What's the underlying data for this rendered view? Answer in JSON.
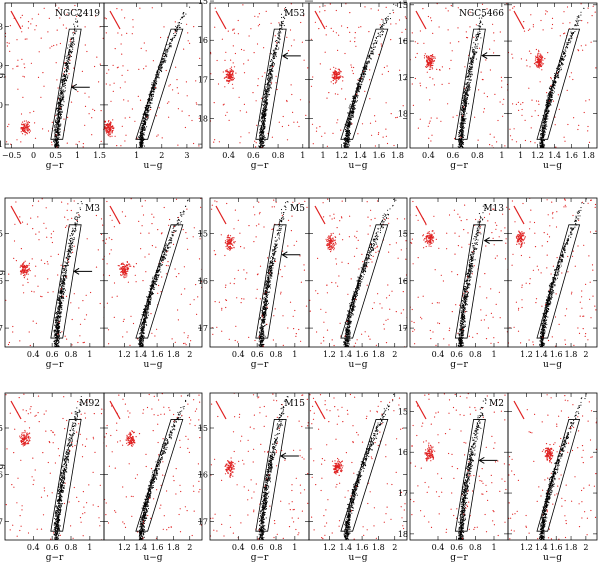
{
  "figure": {
    "y_axis_label": "g",
    "x_axis_labels": [
      "g−r",
      "u−g"
    ]
  },
  "colors": {
    "field_stars": "#e02020",
    "cluster_stars": "#000000",
    "arrows_and_boxes": "#000000"
  },
  "chart_data": [
    {
      "type": "scatter",
      "title": "NGC2419",
      "ylim": [
        21.1,
        17.4
      ],
      "yticks": [
        18,
        19,
        20,
        21
      ],
      "panels": [
        {
          "xlabel": "g−r",
          "xlim": [
            -0.65,
            1.6
          ],
          "xticks": [
            -0.5,
            0,
            0.5,
            1,
            1.5
          ],
          "xtick_labels": [
            "−0.5",
            "0",
            "0.5",
            "1",
            "1.5"
          ]
        },
        {
          "xlabel": "u−g",
          "xlim": [
            -0.3,
            3.6
          ],
          "xticks": [
            1,
            2,
            3
          ],
          "xtick_labels": [
            "1",
            "2",
            "3"
          ]
        }
      ],
      "arrow_g": 19.55,
      "red_blob": {
        "x": -0.1,
        "y": 20.6
      }
    },
    {
      "type": "scatter",
      "title": "M53",
      "ylim": [
        18.75,
        15.05
      ],
      "yticks": [
        15,
        16,
        17,
        18
      ],
      "panels": [
        {
          "xlabel": "g−r",
          "xlim": [
            0.25,
            1.05
          ],
          "xticks": [
            0.4,
            0.6,
            0.8,
            1
          ],
          "xtick_labels": [
            "0.4",
            "0.6",
            "0.8",
            "1"
          ]
        },
        {
          "xlabel": "u−g",
          "xlim": [
            0.85,
            1.9
          ],
          "xticks": [
            1,
            1.2,
            1.4,
            1.6,
            1.8
          ],
          "xtick_labels": [
            "1",
            "1.2",
            "1.4",
            "1.6",
            "1.8"
          ]
        }
      ],
      "arrow_g": 16.4,
      "red_blob": {
        "x": 1.15,
        "y": 16.9
      }
    },
    {
      "type": "scatter",
      "title": "NGC5466",
      "ylim": [
        18.95,
        14.95
      ],
      "yticks": [
        15,
        16,
        17,
        18
      ],
      "panels": [
        {
          "xlabel": "g−r",
          "xlim": [
            0.25,
            1.05
          ],
          "xticks": [
            0.4,
            0.6,
            0.8,
            1
          ],
          "xtick_labels": [
            "0.4",
            "0.6",
            "0.8",
            "1"
          ]
        },
        {
          "xlabel": "u−g",
          "xlim": [
            0.85,
            1.9
          ],
          "xticks": [
            1,
            1.2,
            1.4,
            1.6,
            1.8
          ],
          "xtick_labels": [
            "1",
            "1.2",
            "1.4",
            "1.6",
            "1.8"
          ]
        }
      ],
      "arrow_g": 16.4,
      "red_blob": {
        "x": 1.22,
        "y": 16.55
      }
    },
    {
      "type": "scatter",
      "title": "M3",
      "ylim": [
        17.4,
        14.25
      ],
      "yticks": [
        15,
        16,
        17
      ],
      "panels": [
        {
          "xlabel": "g−r",
          "xlim": [
            0.1,
            1.15
          ],
          "xticks": [
            0.4,
            0.6,
            0.8,
            1
          ],
          "xtick_labels": [
            "0.4",
            "0.6",
            "0.8",
            "1"
          ]
        },
        {
          "xlabel": "u−g",
          "xlim": [
            0.95,
            2.15
          ],
          "xticks": [
            1.2,
            1.4,
            1.6,
            1.8,
            2
          ],
          "xtick_labels": [
            "1.2",
            "1.4",
            "1.6",
            "1.8",
            "2"
          ]
        }
      ],
      "arrow_g": 15.8,
      "red_blob": {
        "x": 1.2,
        "y": 15.75
      }
    },
    {
      "type": "scatter",
      "title": "M5",
      "ylim": [
        17.4,
        14.25
      ],
      "yticks": [
        15,
        16,
        17
      ],
      "panels": [
        {
          "xlabel": "g−r",
          "xlim": [
            0.1,
            1.15
          ],
          "xticks": [
            0.4,
            0.6,
            0.8,
            1
          ],
          "xtick_labels": [
            "0.4",
            "0.6",
            "0.8",
            "1"
          ]
        },
        {
          "xlabel": "u−g",
          "xlim": [
            0.95,
            2.15
          ],
          "xticks": [
            1.2,
            1.4,
            1.6,
            1.8,
            2
          ],
          "xtick_labels": [
            "1.2",
            "1.4",
            "1.6",
            "1.8",
            "2"
          ]
        }
      ],
      "arrow_g": 15.45,
      "red_blob": {
        "x": 1.22,
        "y": 15.2
      }
    },
    {
      "type": "scatter",
      "title": "M13",
      "ylim": [
        17.4,
        14.25
      ],
      "yticks": [
        15,
        16,
        17
      ],
      "panels": [
        {
          "xlabel": "g−r",
          "xlim": [
            0.1,
            1.15
          ],
          "xticks": [
            0.4,
            0.6,
            0.8,
            1
          ],
          "xtick_labels": [
            "0.4",
            "0.6",
            "0.8",
            "1"
          ]
        },
        {
          "xlabel": "u−g",
          "xlim": [
            0.95,
            2.15
          ],
          "xticks": [
            1.2,
            1.4,
            1.6,
            1.8,
            2
          ],
          "xtick_labels": [
            "1.2",
            "1.4",
            "1.6",
            "1.8",
            "2"
          ]
        }
      ],
      "arrow_g": 15.15,
      "red_blob": {
        "x": 1.12,
        "y": 15.1
      }
    },
    {
      "type": "scatter",
      "title": "M92",
      "ylim": [
        17.4,
        14.25
      ],
      "yticks": [
        15,
        16,
        17
      ],
      "panels": [
        {
          "xlabel": "g−r",
          "xlim": [
            0.1,
            1.15
          ],
          "xticks": [
            0.4,
            0.6,
            0.8,
            1
          ],
          "xtick_labels": [
            "0.4",
            "0.6",
            "0.8",
            "1"
          ]
        },
        {
          "xlabel": "u−g",
          "xlim": [
            0.95,
            2.15
          ],
          "xticks": [
            1.2,
            1.4,
            1.6,
            1.8,
            2
          ],
          "xtick_labels": [
            "1.2",
            "1.4",
            "1.6",
            "1.8",
            "2"
          ]
        }
      ],
      "arrow_g": null,
      "red_blob": {
        "x": 1.28,
        "y": 15.25
      }
    },
    {
      "type": "scatter",
      "title": "M15",
      "ylim": [
        17.4,
        14.25
      ],
      "yticks": [
        15,
        16,
        17
      ],
      "panels": [
        {
          "xlabel": "g−r",
          "xlim": [
            0.1,
            1.15
          ],
          "xticks": [
            0.4,
            0.6,
            0.8,
            1
          ],
          "xtick_labels": [
            "0.4",
            "0.6",
            "0.8",
            "1"
          ]
        },
        {
          "xlabel": "u−g",
          "xlim": [
            0.95,
            2.15
          ],
          "xticks": [
            1.2,
            1.4,
            1.6,
            1.8,
            2
          ],
          "xtick_labels": [
            "1.2",
            "1.4",
            "1.6",
            "1.8",
            "2"
          ]
        }
      ],
      "arrow_g": 15.6,
      "red_blob": {
        "x": 1.3,
        "y": 15.85
      }
    },
    {
      "type": "scatter",
      "title": "M2",
      "ylim": [
        18.15,
        14.55
      ],
      "yticks": [
        15,
        16,
        17,
        18
      ],
      "panels": [
        {
          "xlabel": "g−r",
          "xlim": [
            0.1,
            1.15
          ],
          "xticks": [
            0.4,
            0.6,
            0.8,
            1
          ],
          "xtick_labels": [
            "0.4",
            "0.6",
            "0.8",
            "1"
          ]
        },
        {
          "xlabel": "u−g",
          "xlim": [
            0.95,
            2.15
          ],
          "xticks": [
            1.2,
            1.4,
            1.6,
            1.8,
            2
          ],
          "xtick_labels": [
            "1.2",
            "1.4",
            "1.6",
            "1.8",
            "2"
          ]
        }
      ],
      "arrow_g": 16.2,
      "red_blob": {
        "x": 1.5,
        "y": 16.05
      }
    }
  ]
}
